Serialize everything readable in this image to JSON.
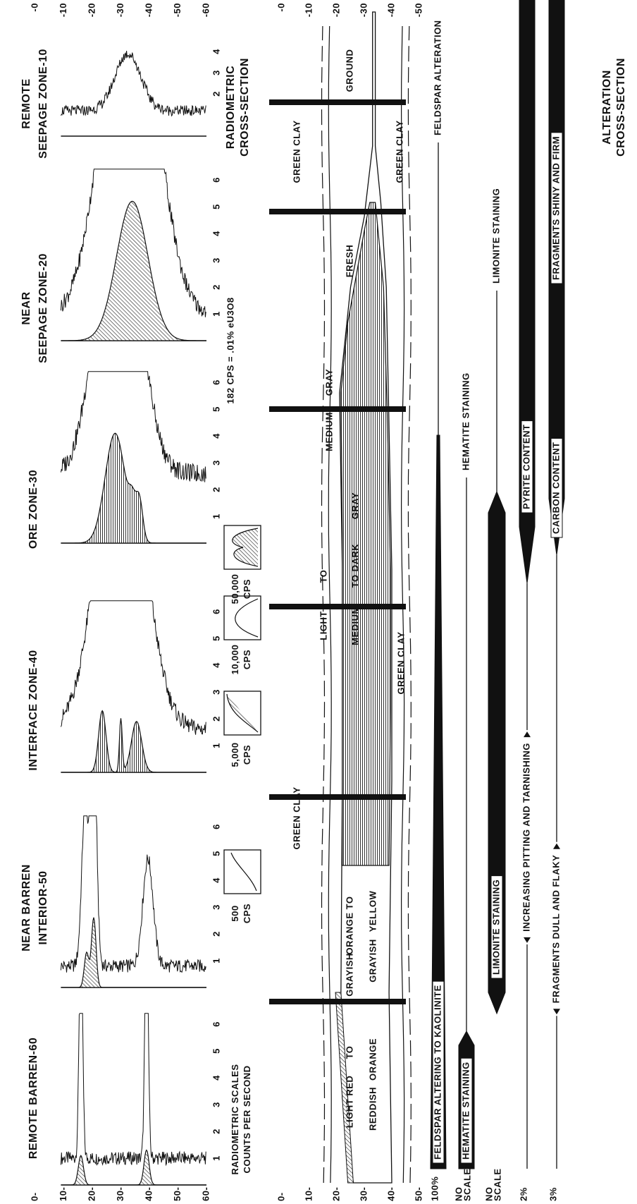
{
  "radiometric": {
    "zones": [
      {
        "title": [
          "REMOTE BARREN-60"
        ],
        "scale": [
          1,
          2,
          3,
          4,
          5,
          6
        ]
      },
      {
        "title": [
          "NEAR BARREN",
          "INTERIOR-50"
        ],
        "scale": [
          1,
          2,
          3,
          4,
          5,
          6
        ]
      },
      {
        "title": [
          "INTERFACE ZONE-40"
        ],
        "scale": [
          1,
          2,
          3,
          4,
          5,
          6
        ]
      },
      {
        "title": [
          "ORE ZONE-30"
        ],
        "scale": [
          1,
          2,
          3,
          4,
          5,
          6
        ]
      },
      {
        "title": [
          "NEAR",
          "SEEPAGE ZONE-20"
        ],
        "scale": [
          1,
          2,
          3,
          4,
          5,
          6
        ]
      },
      {
        "title": [
          "REMOTE",
          "SEEPAGE ZONE-10"
        ],
        "scale": [
          2,
          3,
          4
        ]
      }
    ],
    "depth_left": [
      "0-",
      "10-",
      "20-",
      "30-",
      "40-",
      "50-",
      "60-"
    ],
    "depth_right": [
      "-0",
      "-10",
      "-20",
      "-30",
      "-40",
      "-50",
      "-60"
    ],
    "scale_caption": [
      "RADIOMETRIC SCALES",
      "COUNTS PER SECOND"
    ],
    "scale_boxes": [
      [
        "500",
        "CPS"
      ],
      [
        "5,000",
        "CPS"
      ],
      [
        "10,000",
        "CPS"
      ],
      [
        "50,000",
        "CPS"
      ]
    ],
    "calibration": "182 CPS = .01% eU3O8",
    "title": [
      "RADIOMETRIC",
      "CROSS-SECTION"
    ]
  },
  "lithologic": {
    "depth_left": [
      "0-",
      "10-",
      "20-",
      "30-",
      "40-",
      "50-"
    ],
    "depth_right": [
      "-0",
      "-10",
      "-20",
      "-30",
      "-40",
      "-50"
    ],
    "labels": [
      [
        "GREEN CLAY"
      ],
      [
        "GREEN CLAY"
      ],
      [
        "GREEN CLAY"
      ],
      [
        "GREEN CLAY"
      ],
      [
        "LIGHT RED",
        "TO"
      ],
      [
        "REDDISH",
        "ORANGE"
      ],
      [
        "GRAYISH",
        "ORANGE TO"
      ],
      [
        "GRAYISH",
        "YELLOW"
      ],
      [
        "LIGHT",
        "TO"
      ],
      [
        "MEDIUM",
        "TO DARK",
        "GRAY"
      ],
      [
        "MEDIUM",
        "GRAY"
      ],
      [
        "FRESH"
      ],
      [
        "GROUND"
      ]
    ]
  },
  "alteration": {
    "title": [
      "ALTERATION",
      "CROSS-SECTION"
    ],
    "scale": [
      [
        "100%"
      ],
      [
        "NO",
        "SCALE"
      ],
      [
        "NO",
        "SCALE"
      ],
      [
        "2%"
      ],
      [
        "3%"
      ]
    ],
    "rows": [
      {
        "bar": "FELDSPAR ALTERING TO KAOLINITE",
        "end": "FELDSPAR ALTERATION"
      },
      {
        "bar": "HEMATITE STAINING",
        "end": "HEMATITE STAINING"
      },
      {
        "bar": "LIMONITE STAINING",
        "end": "LIMONITE STAINING"
      },
      {
        "note": "INCREASING PITTING AND TARNISHING",
        "bar": "PYRITE CONTENT"
      },
      {
        "note": "FRAGMENTS DULL AND FLAKY",
        "bar": "CARBON CONTENT",
        "end": "FRAGMENTS SHINY AND FIRM"
      }
    ]
  }
}
